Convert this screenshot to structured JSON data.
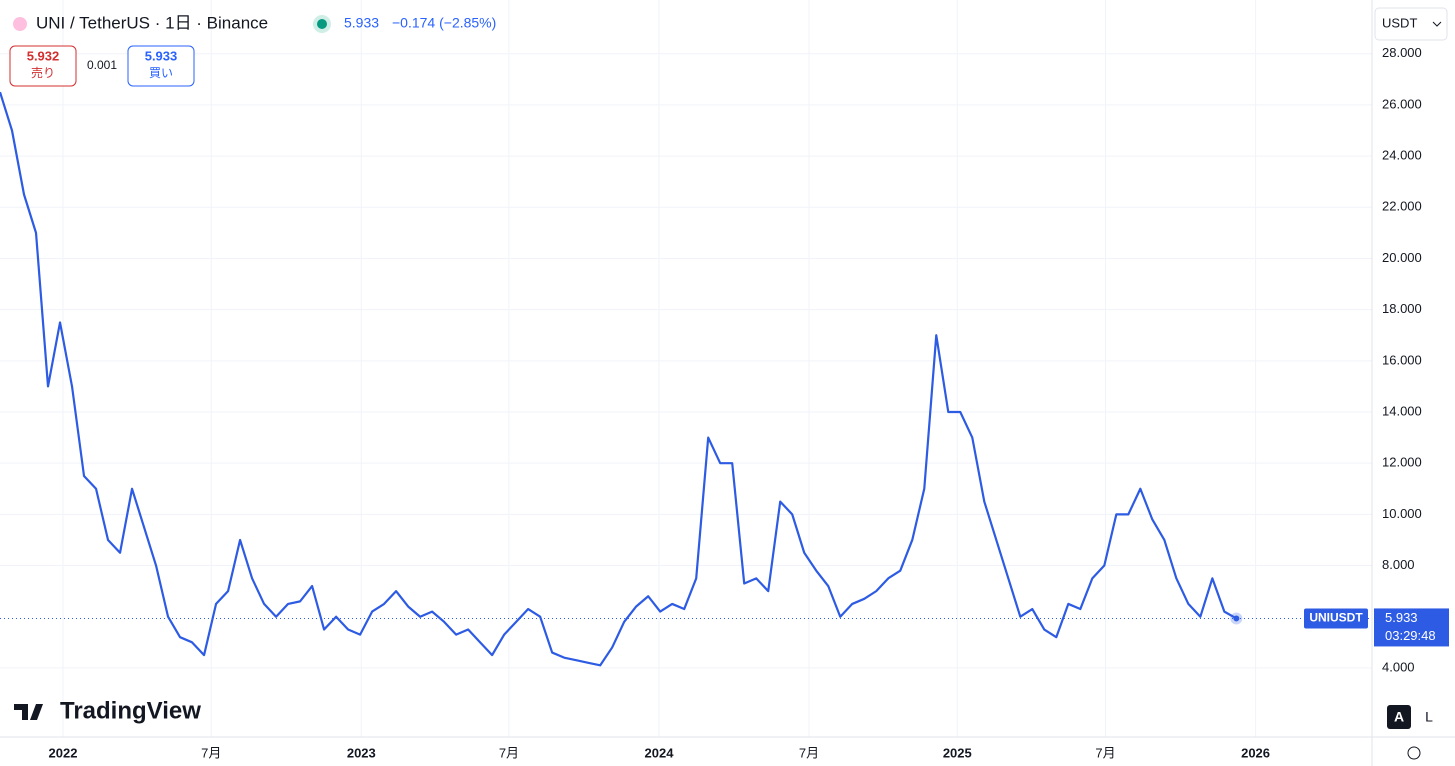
{
  "header": {
    "title": "UNI / TetherUS · 1日 · Binance",
    "price": "5.933",
    "change": "−0.174 (−2.85%)",
    "sell_price": "5.932",
    "sell_label": "売り",
    "spread": "0.001",
    "buy_price": "5.933",
    "buy_label": "買い"
  },
  "currency": "USDT",
  "symbol_label": "UNIUSDT",
  "last_price_label": "5.933",
  "countdown": "03:29:48",
  "logo": "TradingView",
  "buttons": [
    "A",
    "L"
  ],
  "chart_data": {
    "type": "line",
    "color": "#2d5be3",
    "grid": true,
    "series": [
      {
        "name": "UNIUSDT",
        "color": "#2d5be3",
        "values": [
          26.5,
          25,
          22.5,
          21,
          15,
          17.5,
          15,
          11.5,
          11,
          9,
          8.5,
          11,
          9.5,
          8,
          6,
          5.2,
          5,
          4.5,
          6.5,
          7,
          9,
          7.5,
          6.5,
          6,
          6.5,
          6.6,
          7.2,
          5.5,
          6,
          5.5,
          5.3,
          6.2,
          6.5,
          7,
          6.4,
          6,
          6.2,
          5.8,
          5.3,
          5.5,
          5,
          4.5,
          5.3,
          5.8,
          6.3,
          6,
          4.6,
          4.4,
          4.3,
          4.2,
          4.1,
          4.8,
          5.8,
          6.4,
          6.8,
          6.2,
          6.5,
          6.3,
          7.5,
          13,
          12,
          12,
          7.3,
          7.5,
          7,
          10.5,
          10,
          8.5,
          7.8,
          7.2,
          6,
          6.5,
          6.7,
          7,
          7.5,
          7.8,
          9,
          11,
          17,
          14,
          14,
          13,
          10.5,
          9,
          7.5,
          6,
          6.3,
          5.5,
          5.2,
          6.5,
          6.3,
          7.5,
          8,
          10,
          10,
          11,
          9.8,
          9,
          7.5,
          6.5,
          6,
          7.5,
          6.2,
          5.933
        ]
      }
    ],
    "xlim": [
      0,
      114.3
    ],
    "xticks": [
      {
        "value": 5.25,
        "label": "2022"
      },
      {
        "value": 17.6,
        "label": "7月"
      },
      {
        "value": 30.1,
        "label": "2023"
      },
      {
        "value": 42.4,
        "label": "7月"
      },
      {
        "value": 54.9,
        "label": "2024"
      },
      {
        "value": 67.4,
        "label": "7月"
      },
      {
        "value": 79.75,
        "label": "2025"
      },
      {
        "value": 92.1,
        "label": "7月"
      },
      {
        "value": 104.6,
        "label": "2026"
      }
    ],
    "ylim": [
      1.3,
      30.1
    ],
    "yticks": [
      {
        "value": 4,
        "label": "4.000"
      },
      {
        "value": 8,
        "label": "8.000"
      },
      {
        "value": 10,
        "label": "10.000"
      },
      {
        "value": 12,
        "label": "12.000"
      },
      {
        "value": 14,
        "label": "14.000"
      },
      {
        "value": 16,
        "label": "16.000"
      },
      {
        "value": 18,
        "label": "18.000"
      },
      {
        "value": 20,
        "label": "20.000"
      },
      {
        "value": 22,
        "label": "22.000"
      },
      {
        "value": 24,
        "label": "24.000"
      },
      {
        "value": 26,
        "label": "26.000"
      },
      {
        "value": 28,
        "label": "28.000"
      }
    ]
  }
}
